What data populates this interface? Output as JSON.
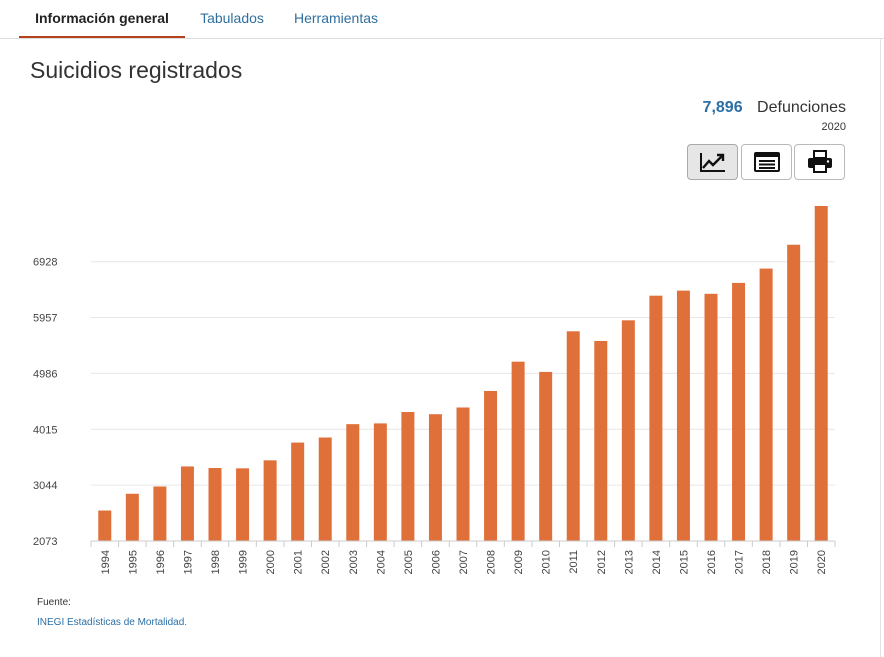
{
  "tabs": [
    {
      "label": "Información general",
      "active": true
    },
    {
      "label": "Tabulados",
      "active": false
    },
    {
      "label": "Herramientas",
      "active": false
    }
  ],
  "page_title": "Suicidios registrados",
  "kpi": {
    "value": "7,896",
    "unit": "Defunciones",
    "year": "2020"
  },
  "toolbar": {
    "icons": [
      "line-chart-icon",
      "table-icon",
      "print-icon"
    ],
    "active_index": 0
  },
  "colors": {
    "bar": "#e0703a",
    "accent": "#b5411d",
    "link": "#2b6fa6",
    "grid": "#e6e6e6"
  },
  "chart_data": {
    "type": "bar",
    "categories": [
      "1994",
      "1995",
      "1996",
      "1997",
      "1998",
      "1999",
      "2000",
      "2001",
      "2002",
      "2003",
      "2004",
      "2005",
      "2006",
      "2007",
      "2008",
      "2009",
      "2010",
      "2011",
      "2012",
      "2013",
      "2014",
      "2015",
      "2016",
      "2017",
      "2018",
      "2019",
      "2020"
    ],
    "values": [
      2603,
      2894,
      3020,
      3369,
      3342,
      3336,
      3475,
      3784,
      3872,
      4104,
      4117,
      4315,
      4277,
      4394,
      4681,
      5190,
      5012,
      5718,
      5550,
      5909,
      6337,
      6425,
      6370,
      6559,
      6808,
      7223,
      7896
    ],
    "ytick_labels": [
      "2073",
      "3044",
      "4015",
      "4986",
      "5957",
      "6928"
    ],
    "ytick_values": [
      2073,
      3044,
      4015,
      4986,
      5957,
      6928
    ],
    "ylim": [
      2073,
      7896
    ],
    "grid": true,
    "legend": "none"
  },
  "source": {
    "label": "Fuente:",
    "link_text": "INEGI Estadísticas de Mortalidad."
  }
}
